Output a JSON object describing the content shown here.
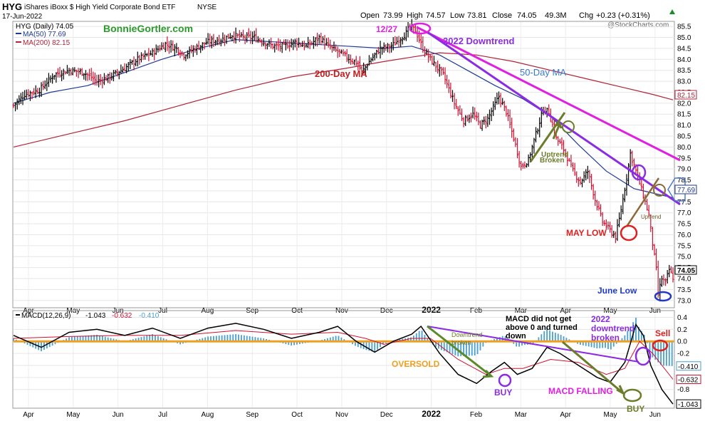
{
  "header": {
    "symbol": "HYG",
    "name": "iShares iBoxx $ High Yield Corporate Bond ETF",
    "exchange": "NYSE",
    "date": "17-Jun-2022",
    "open_label": "Open",
    "open": "73.99",
    "high_label": "High",
    "high": "74.57",
    "low_label": "Low",
    "low": "73.81",
    "close_label": "Close",
    "close": "74.05",
    "volume": "49.3M",
    "chg_label": "Chg",
    "chg": "+0.23 (+0.31%)",
    "chg_icon": "triangle-up-icon",
    "watermark": "@StockCharts.com"
  },
  "legend": {
    "main": "HYG (Daily) 74.05",
    "ma50": "MA(50) 77.69",
    "ma200": "MA(200) 82.15",
    "macd_label": "MACD(12,26,9)",
    "macd_values": [
      "-1.043",
      "-0.632",
      "-0.410"
    ]
  },
  "colors": {
    "ma50": "#1f3a93",
    "ma200": "#b0243a",
    "magenta": "#e020e0",
    "purple": "#8b2be2",
    "olive": "#6b7d2a",
    "red": "#e02020",
    "blue": "#1f3ac8",
    "orange": "#f0a020",
    "histogram": "#4a9fd0",
    "down": "#d01030",
    "up": "#000000"
  },
  "chart_data": [
    {
      "type": "ohlc",
      "x_months": [
        "Apr",
        "May",
        "Jun",
        "Jul",
        "Aug",
        "Sep",
        "Oct",
        "Nov",
        "Dec",
        "2022",
        "Feb",
        "Mar",
        "Apr",
        "May",
        "Jun"
      ],
      "ylim": [
        72.7,
        85.7
      ],
      "y_ticks": [
        73.0,
        73.5,
        74.0,
        74.5,
        75.0,
        75.5,
        76.0,
        76.5,
        77.0,
        77.5,
        78.0,
        78.5,
        79.0,
        79.5,
        80.0,
        80.5,
        81.0,
        81.5,
        82.0,
        82.5,
        83.0,
        83.5,
        84.0,
        84.5,
        85.0,
        85.5
      ],
      "price_path": [
        [
          0,
          81.9
        ],
        [
          6,
          82.4
        ],
        [
          14,
          82.6
        ],
        [
          22,
          83.3
        ],
        [
          30,
          83.5
        ],
        [
          38,
          83.4
        ],
        [
          45,
          83.0
        ],
        [
          52,
          83.2
        ],
        [
          60,
          83.6
        ],
        [
          67,
          84.0
        ],
        [
          75,
          84.3
        ],
        [
          82,
          84.7
        ],
        [
          88,
          84.5
        ],
        [
          92,
          84.2
        ],
        [
          98,
          84.5
        ],
        [
          105,
          84.8
        ],
        [
          112,
          84.9
        ],
        [
          118,
          85.1
        ],
        [
          124,
          85.0
        ],
        [
          130,
          85.0
        ],
        [
          135,
          84.8
        ],
        [
          140,
          84.6
        ],
        [
          146,
          84.6
        ],
        [
          152,
          84.8
        ],
        [
          158,
          84.6
        ],
        [
          162,
          84.8
        ],
        [
          165,
          85.0
        ],
        [
          170,
          84.6
        ],
        [
          176,
          84.3
        ],
        [
          182,
          84.0
        ],
        [
          186,
          83.8
        ],
        [
          188,
          83.4
        ],
        [
          192,
          83.9
        ],
        [
          198,
          84.5
        ],
        [
          204,
          84.6
        ],
        [
          208,
          84.9
        ],
        [
          212,
          85.2
        ],
        [
          214,
          85.5
        ],
        [
          217,
          85.3
        ],
        [
          221,
          84.5
        ],
        [
          225,
          84.0
        ],
        [
          232,
          83.3
        ],
        [
          238,
          82.0
        ],
        [
          243,
          81.2
        ],
        [
          248,
          81.5
        ],
        [
          252,
          81.0
        ],
        [
          256,
          81.3
        ],
        [
          262,
          82.3
        ],
        [
          266,
          81.6
        ],
        [
          270,
          80.4
        ],
        [
          274,
          79.1
        ],
        [
          278,
          79.4
        ],
        [
          282,
          80.6
        ],
        [
          286,
          81.7
        ],
        [
          289,
          81.6
        ],
        [
          293,
          80.4
        ],
        [
          297,
          79.9
        ],
        [
          302,
          78.9
        ],
        [
          306,
          78.4
        ],
        [
          310,
          78.9
        ],
        [
          314,
          77.6
        ],
        [
          318,
          76.6
        ],
        [
          322,
          76.2
        ],
        [
          325,
          75.9
        ],
        [
          327,
          76.7
        ],
        [
          330,
          78.1
        ],
        [
          333,
          79.7
        ],
        [
          336,
          78.9
        ],
        [
          340,
          77.8
        ],
        [
          343,
          76.9
        ],
        [
          345,
          75.6
        ],
        [
          347,
          74.4
        ],
        [
          348,
          73.3
        ],
        [
          350,
          74.0
        ],
        [
          352,
          73.8
        ],
        [
          354,
          74.4
        ],
        [
          356,
          74.05
        ]
      ],
      "ma50_path": [
        [
          0,
          82.0
        ],
        [
          20,
          82.5
        ],
        [
          40,
          82.8
        ],
        [
          60,
          83.4
        ],
        [
          80,
          84.0
        ],
        [
          100,
          84.5
        ],
        [
          120,
          84.9
        ],
        [
          140,
          84.8
        ],
        [
          160,
          84.7
        ],
        [
          180,
          84.6
        ],
        [
          200,
          84.5
        ],
        [
          215,
          84.6
        ],
        [
          230,
          84.2
        ],
        [
          245,
          83.5
        ],
        [
          260,
          82.8
        ],
        [
          275,
          82.2
        ],
        [
          290,
          81.4
        ],
        [
          305,
          80.1
        ],
        [
          320,
          78.9
        ],
        [
          335,
          78.1
        ],
        [
          345,
          77.9
        ],
        [
          356,
          77.69
        ]
      ],
      "ma200_path": [
        [
          0,
          80.0
        ],
        [
          30,
          80.6
        ],
        [
          60,
          81.2
        ],
        [
          90,
          81.9
        ],
        [
          120,
          82.6
        ],
        [
          150,
          83.2
        ],
        [
          180,
          83.6
        ],
        [
          200,
          83.9
        ],
        [
          215,
          84.1
        ],
        [
          230,
          84.3
        ],
        [
          250,
          84.2
        ],
        [
          270,
          83.9
        ],
        [
          290,
          83.5
        ],
        [
          310,
          83.1
        ],
        [
          330,
          82.7
        ],
        [
          345,
          82.4
        ],
        [
          356,
          82.15
        ]
      ],
      "annotations": [
        "BonnieGortler.com",
        "12/27",
        "2022 Downtrend",
        "200-Day MA",
        "50-Day MA",
        "Uptrend Broken",
        "Uptrend",
        "MAY LOW",
        "June Low"
      ],
      "last_price": "74.05",
      "ma50_tag": "77.69",
      "ma200_tag": "82.15"
    },
    {
      "type": "macd",
      "ylim": [
        -1.1,
        0.5
      ],
      "y_ticks": [
        "0.4",
        "0.2",
        "0.0",
        "-0.2",
        "-0.4",
        "-0.6",
        "-0.8"
      ],
      "value_tags": [
        "-0.410",
        "-0.632",
        "-1.043"
      ],
      "macd_path": [
        [
          0,
          0.1
        ],
        [
          15,
          -0.1
        ],
        [
          30,
          0.15
        ],
        [
          45,
          0.2
        ],
        [
          60,
          0.1
        ],
        [
          75,
          0.22
        ],
        [
          90,
          0.05
        ],
        [
          105,
          0.22
        ],
        [
          120,
          0.3
        ],
        [
          135,
          0.2
        ],
        [
          150,
          0.05
        ],
        [
          165,
          0.15
        ],
        [
          175,
          0.25
        ],
        [
          185,
          0.0
        ],
        [
          195,
          -0.18
        ],
        [
          205,
          0.0
        ],
        [
          215,
          0.12
        ],
        [
          220,
          0.25
        ],
        [
          230,
          -0.2
        ],
        [
          240,
          -0.55
        ],
        [
          250,
          -0.7
        ],
        [
          258,
          -0.5
        ],
        [
          265,
          -0.35
        ],
        [
          272,
          -0.55
        ],
        [
          280,
          -0.45
        ],
        [
          288,
          -0.1
        ],
        [
          295,
          -0.2
        ],
        [
          305,
          -0.4
        ],
        [
          315,
          -0.6
        ],
        [
          322,
          -0.68
        ],
        [
          330,
          -0.35
        ],
        [
          336,
          0.28
        ],
        [
          340,
          0.1
        ],
        [
          344,
          -0.4
        ],
        [
          350,
          -0.8
        ],
        [
          356,
          -1.043
        ]
      ],
      "signal_path": [
        [
          0,
          0.05
        ],
        [
          30,
          0.08
        ],
        [
          60,
          0.1
        ],
        [
          90,
          0.1
        ],
        [
          120,
          0.18
        ],
        [
          150,
          0.12
        ],
        [
          175,
          0.15
        ],
        [
          190,
          0.05
        ],
        [
          200,
          -0.05
        ],
        [
          215,
          0.05
        ],
        [
          225,
          0.05
        ],
        [
          240,
          -0.3
        ],
        [
          255,
          -0.55
        ],
        [
          265,
          -0.45
        ],
        [
          275,
          -0.45
        ],
        [
          290,
          -0.3
        ],
        [
          305,
          -0.35
        ],
        [
          320,
          -0.55
        ],
        [
          330,
          -0.45
        ],
        [
          338,
          0.0
        ],
        [
          345,
          -0.2
        ],
        [
          356,
          -0.632
        ]
      ],
      "annotations": [
        "Downtrend broken",
        "OVERSOLD",
        "BUY",
        "MACD did not get above 0 and turned down",
        "MACD FALLING",
        "2022 downtrend broken",
        "BUY",
        "Sell"
      ]
    }
  ]
}
